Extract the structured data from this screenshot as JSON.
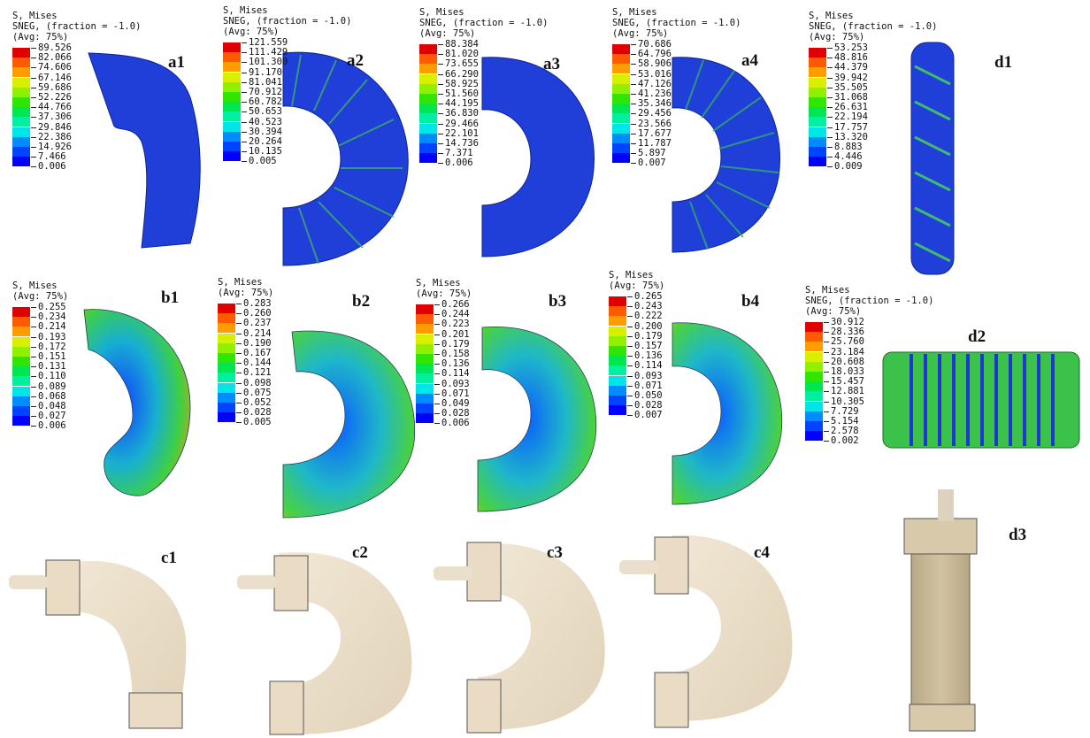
{
  "legend_heading": "S, Mises",
  "legend_sneg": "SNEG, (fraction = -1.0)",
  "legend_avg": "(Avg: 75%)",
  "colormap": [
    "#0000ff",
    "#0044ff",
    "#008cff",
    "#00c8ff",
    "#00e6e6",
    "#00f0a0",
    "#00e650",
    "#30e600",
    "#90f000",
    "#d8f000",
    "#ffd800",
    "#ff9c00",
    "#ff5a00",
    "#e00000"
  ],
  "legends": {
    "a1": [
      "89.526",
      "82.066",
      "74.606",
      "67.146",
      "59.686",
      "52.226",
      "44.766",
      "37.306",
      "29.846",
      "22.386",
      "14.926",
      "7.466",
      "0.006"
    ],
    "a2": [
      "121.559",
      "111.429",
      "101.300",
      "91.170",
      "81.041",
      "70.912",
      "60.782",
      "50.653",
      "40.523",
      "30.394",
      "20.264",
      "10.135",
      "0.005"
    ],
    "a3": [
      "88.384",
      "81.020",
      "73.655",
      "66.290",
      "58.925",
      "51.560",
      "44.195",
      "36.830",
      "29.466",
      "22.101",
      "14.736",
      "7.371",
      "0.006"
    ],
    "a4": [
      "70.686",
      "64.796",
      "58.906",
      "53.016",
      "47.126",
      "41.236",
      "35.346",
      "29.456",
      "23.566",
      "17.677",
      "11.787",
      "5.897",
      "0.007"
    ],
    "d1": [
      "53.253",
      "48.816",
      "44.379",
      "39.942",
      "35.505",
      "31.068",
      "26.631",
      "22.194",
      "17.757",
      "13.320",
      "8.883",
      "4.446",
      "0.009"
    ],
    "b1": [
      "0.255",
      "0.234",
      "0.214",
      "0.193",
      "0.172",
      "0.151",
      "0.131",
      "0.110",
      "0.089",
      "0.068",
      "0.048",
      "0.027",
      "0.006"
    ],
    "b2": [
      "0.283",
      "0.260",
      "0.237",
      "0.214",
      "0.190",
      "0.167",
      "0.144",
      "0.121",
      "0.098",
      "0.075",
      "0.052",
      "0.028",
      "0.005"
    ],
    "b3": [
      "0.266",
      "0.244",
      "0.223",
      "0.201",
      "0.179",
      "0.158",
      "0.136",
      "0.114",
      "0.093",
      "0.071",
      "0.049",
      "0.028",
      "0.006"
    ],
    "b4": [
      "0.265",
      "0.243",
      "0.222",
      "0.200",
      "0.179",
      "0.157",
      "0.136",
      "0.114",
      "0.093",
      "0.071",
      "0.050",
      "0.028",
      "0.007"
    ],
    "d2": [
      "30.912",
      "28.336",
      "25.760",
      "23.184",
      "20.608",
      "18.033",
      "15.457",
      "12.881",
      "10.305",
      "7.729",
      "5.154",
      "2.578",
      "0.002"
    ]
  },
  "panel_labels": {
    "a1": "a1",
    "a2": "a2",
    "a3": "a3",
    "a4": "a4",
    "d1": "d1",
    "b1": "b1",
    "b2": "b2",
    "b3": "b3",
    "b4": "b4",
    "d2": "d2",
    "c1": "c1",
    "c2": "c2",
    "c3": "c3",
    "c4": "c4",
    "d3": "d3"
  }
}
